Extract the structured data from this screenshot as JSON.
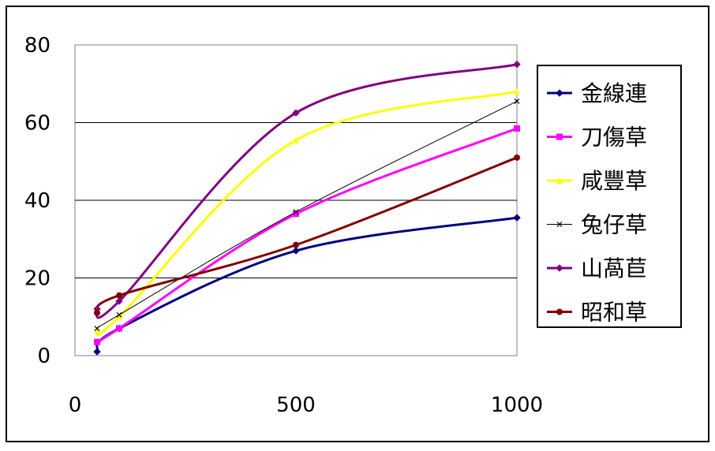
{
  "chart_data": {
    "type": "line",
    "x": [
      50,
      100,
      500,
      1000
    ],
    "xlim": [
      0,
      1000
    ],
    "ylim": [
      0,
      80
    ],
    "x_ticks": [
      "0",
      "500",
      "1000"
    ],
    "y_ticks": [
      "0",
      "20",
      "40",
      "60",
      "80"
    ],
    "grid": "horizontal",
    "legend_position": "right",
    "series": [
      {
        "name": "金線連",
        "values": [
          1,
          7,
          27,
          35.5
        ],
        "color": "#000080",
        "marker": "diamond"
      },
      {
        "name": "刀傷草",
        "values": [
          3.5,
          7,
          36.5,
          58.5
        ],
        "color": "#FF00FF",
        "marker": "square"
      },
      {
        "name": "咸豐草",
        "values": [
          6.5,
          10,
          55.5,
          68
        ],
        "color": "#FFFF00",
        "marker": "triangle"
      },
      {
        "name": "兔仔草",
        "values": [
          7,
          10.5,
          37,
          65.5
        ],
        "color": "#000000",
        "marker": "x"
      },
      {
        "name": "山萵苣",
        "values": [
          12,
          14,
          62.5,
          75
        ],
        "color": "#800080",
        "marker": "diamond"
      },
      {
        "name": "昭和草",
        "values": [
          11,
          15.5,
          28.5,
          51
        ],
        "color": "#800000",
        "marker": "circle"
      }
    ]
  }
}
